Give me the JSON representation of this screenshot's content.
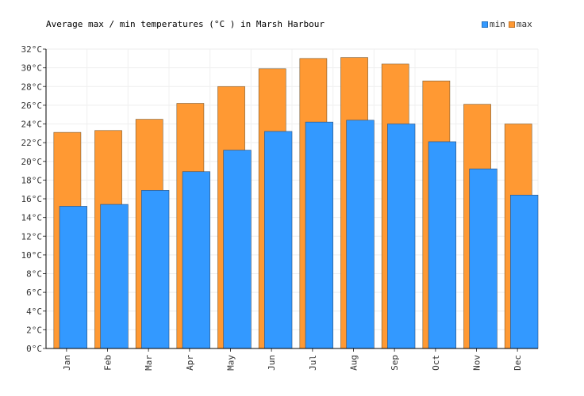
{
  "chart_data": {
    "type": "bar",
    "title": "Average max / min temperatures (°C ) in Marsh Harbour",
    "categories": [
      "Jan",
      "Feb",
      "Mar",
      "Apr",
      "May",
      "Jun",
      "Jul",
      "Aug",
      "Sep",
      "Oct",
      "Nov",
      "Dec"
    ],
    "series": [
      {
        "name": "max",
        "color": "#ff9933",
        "values": [
          23.1,
          23.3,
          24.5,
          26.2,
          28.0,
          29.9,
          31.0,
          31.1,
          30.4,
          28.6,
          26.1,
          24.0
        ]
      },
      {
        "name": "min",
        "color": "#3399ff",
        "values": [
          15.2,
          15.4,
          16.9,
          18.9,
          21.2,
          23.2,
          24.2,
          24.4,
          24.0,
          22.1,
          19.2,
          16.4
        ]
      }
    ],
    "ylim": [
      0,
      32
    ],
    "yticks": [
      0,
      2,
      4,
      6,
      8,
      10,
      12,
      14,
      16,
      18,
      20,
      22,
      24,
      26,
      28,
      30,
      32
    ],
    "y_unit": "°C",
    "grid": true,
    "legend": {
      "position": "top-right",
      "entries": [
        "min",
        "max"
      ]
    }
  }
}
